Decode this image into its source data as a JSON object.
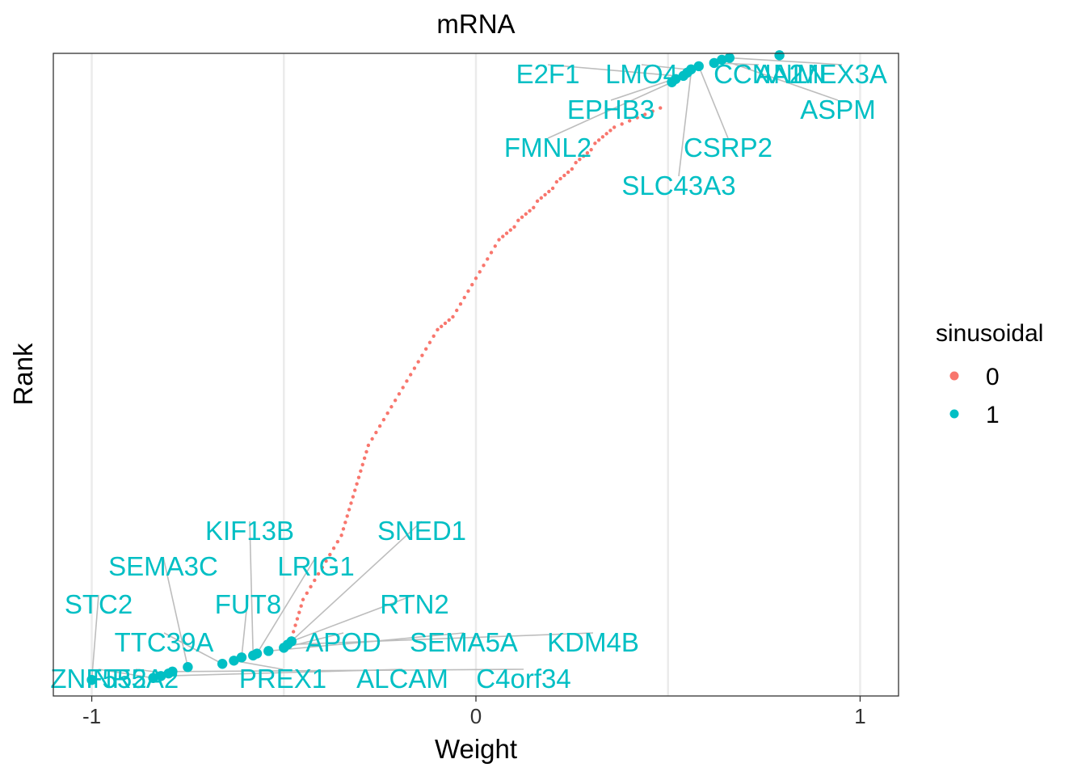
{
  "chart_data": {
    "type": "scatter",
    "title": "mRNA",
    "xlabel": "Weight",
    "ylabel": "Rank",
    "xlim": [
      -1.1,
      1.1
    ],
    "ylim": [
      0,
      1
    ],
    "x_ticks": [
      -1,
      0,
      1
    ],
    "x_tick_labels": [
      "-1",
      "0",
      "1"
    ],
    "grid": {
      "x_major": true,
      "x_minor": true,
      "y": false
    },
    "legend": {
      "title": "sinusoidal",
      "position": "right",
      "entries": [
        {
          "label": "0",
          "color": "#F8766D"
        },
        {
          "label": "1",
          "color": "#00BFC4"
        }
      ]
    },
    "series": [
      {
        "name": "0",
        "color": "#F8766D",
        "x": [
          -0.48,
          -0.475,
          -0.47,
          -0.465,
          -0.46,
          -0.455,
          -0.45,
          -0.44,
          -0.43,
          -0.42,
          -0.41,
          -0.4,
          -0.39,
          -0.38,
          -0.37,
          -0.36,
          -0.35,
          -0.345,
          -0.34,
          -0.335,
          -0.33,
          -0.325,
          -0.32,
          -0.315,
          -0.31,
          -0.305,
          -0.3,
          -0.295,
          -0.29,
          -0.285,
          -0.28,
          -0.27,
          -0.26,
          -0.25,
          -0.24,
          -0.23,
          -0.22,
          -0.21,
          -0.2,
          -0.19,
          -0.18,
          -0.17,
          -0.16,
          -0.15,
          -0.14,
          -0.13,
          -0.12,
          -0.11,
          -0.1,
          -0.09,
          -0.08,
          -0.07,
          -0.06,
          -0.05,
          -0.04,
          -0.03,
          -0.02,
          -0.01,
          0.0,
          0.01,
          0.02,
          0.03,
          0.04,
          0.05,
          0.06,
          0.07,
          0.08,
          0.09,
          0.1,
          0.11,
          0.12,
          0.13,
          0.14,
          0.15,
          0.16,
          0.17,
          0.18,
          0.19,
          0.2,
          0.21,
          0.22,
          0.23,
          0.24,
          0.25,
          0.26,
          0.27,
          0.28,
          0.29,
          0.3,
          0.31,
          0.32,
          0.33,
          0.34,
          0.35,
          0.36,
          0.38,
          0.4,
          0.42,
          0.44,
          0.46,
          0.48
        ],
        "y": [
          0.09,
          0.1,
          0.11,
          0.12,
          0.13,
          0.14,
          0.15,
          0.16,
          0.17,
          0.18,
          0.19,
          0.2,
          0.21,
          0.22,
          0.23,
          0.24,
          0.25,
          0.26,
          0.27,
          0.28,
          0.29,
          0.3,
          0.31,
          0.32,
          0.33,
          0.34,
          0.35,
          0.36,
          0.37,
          0.38,
          0.39,
          0.4,
          0.41,
          0.42,
          0.43,
          0.44,
          0.45,
          0.46,
          0.47,
          0.48,
          0.49,
          0.5,
          0.51,
          0.52,
          0.53,
          0.54,
          0.55,
          0.56,
          0.57,
          0.575,
          0.58,
          0.585,
          0.59,
          0.6,
          0.61,
          0.62,
          0.63,
          0.64,
          0.65,
          0.66,
          0.67,
          0.68,
          0.69,
          0.7,
          0.71,
          0.715,
          0.72,
          0.725,
          0.73,
          0.74,
          0.745,
          0.75,
          0.755,
          0.76,
          0.77,
          0.775,
          0.78,
          0.785,
          0.79,
          0.8,
          0.805,
          0.81,
          0.815,
          0.82,
          0.83,
          0.835,
          0.84,
          0.845,
          0.85,
          0.86,
          0.865,
          0.87,
          0.875,
          0.88,
          0.885,
          0.89,
          0.895,
          0.9,
          0.905,
          0.91,
          0.915
        ]
      },
      {
        "name": "1",
        "color": "#00BFC4",
        "x": [
          -1.0,
          -0.84,
          -0.82,
          -0.8,
          -0.79,
          -0.75,
          -0.66,
          -0.63,
          -0.61,
          -0.58,
          -0.57,
          -0.54,
          -0.5,
          -0.49,
          -0.48,
          0.51,
          0.52,
          0.54,
          0.55,
          0.56,
          0.58,
          0.62,
          0.64,
          0.66,
          0.79
        ],
        "y": [
          0.025,
          0.028,
          0.031,
          0.035,
          0.038,
          0.045,
          0.05,
          0.055,
          0.06,
          0.063,
          0.066,
          0.07,
          0.075,
          0.08,
          0.085,
          0.955,
          0.96,
          0.965,
          0.97,
          0.975,
          0.98,
          0.985,
          0.99,
          0.993,
          0.997
        ]
      }
    ],
    "annotations": [
      {
        "text": "E2F1",
        "x": 0.52,
        "y": 0.965
      },
      {
        "text": "LMO4",
        "x": 0.55,
        "y": 0.975
      },
      {
        "text": "CCNA2",
        "x": 0.62,
        "y": 0.985
      },
      {
        "text": "ANLN",
        "x": 0.79,
        "y": 0.997
      },
      {
        "text": "MEX3A",
        "x": 0.66,
        "y": 0.993
      },
      {
        "text": "ASPM",
        "x": 0.64,
        "y": 0.99
      },
      {
        "text": "EPHB3",
        "x": 0.54,
        "y": 0.965
      },
      {
        "text": "CSRP2",
        "x": 0.58,
        "y": 0.98
      },
      {
        "text": "FMNL2",
        "x": 0.51,
        "y": 0.955
      },
      {
        "text": "SLC43A3",
        "x": 0.56,
        "y": 0.97
      },
      {
        "text": "KIF13B",
        "x": -0.58,
        "y": 0.063
      },
      {
        "text": "SNED1",
        "x": -0.49,
        "y": 0.08
      },
      {
        "text": "SEMA3C",
        "x": -0.75,
        "y": 0.045
      },
      {
        "text": "LRIG1",
        "x": -0.57,
        "y": 0.066
      },
      {
        "text": "FUT8",
        "x": -0.61,
        "y": 0.06
      },
      {
        "text": "RTN2",
        "x": -0.48,
        "y": 0.085
      },
      {
        "text": "STC2",
        "x": -1.0,
        "y": 0.025
      },
      {
        "text": "TTC39A",
        "x": -0.66,
        "y": 0.05
      },
      {
        "text": "APOD",
        "x": -0.5,
        "y": 0.075
      },
      {
        "text": "SEMA5A",
        "x": -0.54,
        "y": 0.07
      },
      {
        "text": "KDM4B",
        "x": -0.49,
        "y": 0.08
      },
      {
        "text": "ZNF552",
        "x": -0.84,
        "y": 0.028
      },
      {
        "text": "NR5A2",
        "x": -0.8,
        "y": 0.035
      },
      {
        "text": "PREX1",
        "x": -0.63,
        "y": 0.055
      },
      {
        "text": "ALCAM",
        "x": -0.82,
        "y": 0.031
      },
      {
        "text": "C4orf34",
        "x": -0.79,
        "y": 0.038
      }
    ]
  }
}
